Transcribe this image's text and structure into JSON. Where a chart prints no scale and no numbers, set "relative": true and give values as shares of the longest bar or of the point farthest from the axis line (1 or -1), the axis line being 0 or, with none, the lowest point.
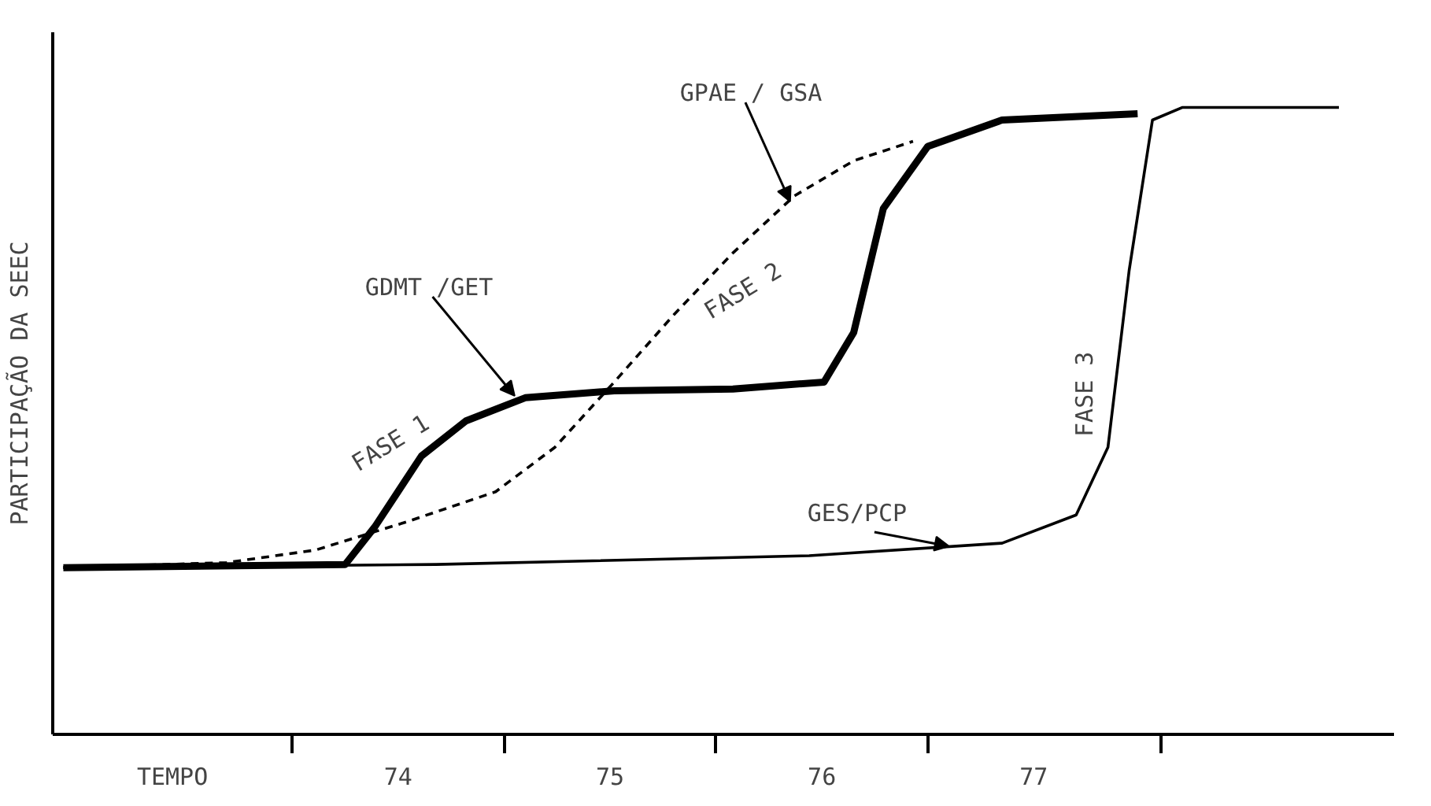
{
  "chart_data": {
    "type": "line",
    "relative": true,
    "ylabel": "PARTICIPAÇÃO DA SEEC",
    "xlabel": "TEMPO",
    "xlim": [
      72.37,
      78.7
    ],
    "xticks": [
      {
        "value": 73.5,
        "label": null
      },
      74,
      {
        "value": 74.5,
        "label": null
      },
      75,
      {
        "value": 75.5,
        "label": null
      },
      76,
      {
        "value": 76.5,
        "label": null
      },
      77,
      {
        "value": 77.6,
        "label": null
      }
    ],
    "grid": false,
    "line_style": "solid",
    "marker": "none",
    "series": [
      {
        "color": "#000000",
        "x": [
          72.42,
          73.75,
          73.89,
          74.11,
          74.32,
          74.6,
          75.02,
          75.58,
          76.01,
          76.15,
          76.29,
          76.5,
          76.85,
          77.49
        ],
        "values": [
          0.266,
          0.271,
          0.331,
          0.444,
          0.5,
          0.537,
          0.548,
          0.551,
          0.562,
          0.641,
          0.839,
          0.938,
          0.98,
          0.99
        ]
      },
      {
        "color": "#000000",
        "line_style": "dashed",
        "x": [
          72.42,
          73.19,
          73.61,
          74.04,
          74.46,
          74.74,
          75.02,
          75.3,
          75.58,
          75.87,
          76.15,
          76.43
        ],
        "values": [
          0.266,
          0.274,
          0.294,
          0.339,
          0.387,
          0.458,
          0.562,
          0.669,
          0.768,
          0.859,
          0.915,
          0.946
        ]
      },
      {
        "color": "#000000",
        "x": [
          72.42,
          74.18,
          75.94,
          76.85,
          77.2,
          77.35,
          77.45,
          77.56,
          77.7,
          78.44
        ],
        "values": [
          0.266,
          0.271,
          0.285,
          0.305,
          0.35,
          0.458,
          0.74,
          0.98,
          1.0,
          1.0
        ]
      }
    ],
    "annotations": [
      {
        "text": "GDMT /GET",
        "x": 74.55,
        "y": 0.54
      },
      {
        "text": "GPAE / GSA",
        "x": 75.85,
        "y": 0.85
      },
      {
        "text": "GES/PCP",
        "x": 76.6,
        "y": 0.3
      },
      {
        "text": "FASE 1",
        "x": 74.05,
        "y": 0.43
      },
      "FASE 2",
      {
        "text": "FASE 3",
        "x": 77.38,
        "y": 0.55
      }
    ]
  }
}
